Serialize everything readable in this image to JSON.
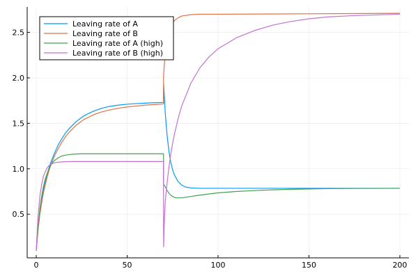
{
  "chart_data": {
    "type": "line",
    "title": "",
    "xlabel": "",
    "ylabel": "",
    "xlim": [
      -5,
      205
    ],
    "ylim": [
      0.02,
      2.78
    ],
    "xticks": [
      0,
      50,
      100,
      150,
      200
    ],
    "yticks": [
      0.5,
      1.0,
      1.5,
      2.0,
      2.5
    ],
    "xtick_labels": [
      "0",
      "50",
      "100",
      "150",
      "200"
    ],
    "ytick_labels": [
      "0.5",
      "1.0",
      "1.5",
      "2.0",
      "2.5"
    ],
    "grid": true,
    "legend_position": "top-left",
    "series": [
      {
        "name": "Leaving rate of A",
        "color": "#009af9",
        "points": [
          [
            0,
            0.1
          ],
          [
            1,
            0.35
          ],
          [
            2,
            0.52
          ],
          [
            3,
            0.66
          ],
          [
            4,
            0.77
          ],
          [
            5,
            0.86
          ],
          [
            6,
            0.94
          ],
          [
            7,
            1.01
          ],
          [
            8,
            1.07
          ],
          [
            9,
            1.12
          ],
          [
            10,
            1.17
          ],
          [
            12,
            1.26
          ],
          [
            14,
            1.33
          ],
          [
            16,
            1.39
          ],
          [
            18,
            1.44
          ],
          [
            20,
            1.48
          ],
          [
            22,
            1.52
          ],
          [
            24,
            1.55
          ],
          [
            26,
            1.58
          ],
          [
            28,
            1.6
          ],
          [
            30,
            1.62
          ],
          [
            33,
            1.645
          ],
          [
            36,
            1.665
          ],
          [
            40,
            1.685
          ],
          [
            45,
            1.7
          ],
          [
            50,
            1.71
          ],
          [
            55,
            1.717
          ],
          [
            60,
            1.722
          ],
          [
            65,
            1.727
          ],
          [
            70,
            1.73
          ],
          [
            70.05,
            1.93
          ],
          [
            70.5,
            1.78
          ],
          [
            71,
            1.6
          ],
          [
            72,
            1.36
          ],
          [
            73,
            1.19
          ],
          [
            74,
            1.07
          ],
          [
            75,
            0.99
          ],
          [
            76,
            0.93
          ],
          [
            78,
            0.86
          ],
          [
            80,
            0.82
          ],
          [
            82,
            0.8
          ],
          [
            85,
            0.79
          ],
          [
            90,
            0.785
          ],
          [
            100,
            0.785
          ],
          [
            150,
            0.785
          ],
          [
            200,
            0.785
          ]
        ]
      },
      {
        "name": "Leaving rate of B",
        "color": "#e26f46",
        "points": [
          [
            0,
            0.1
          ],
          [
            1,
            0.33
          ],
          [
            2,
            0.5
          ],
          [
            3,
            0.63
          ],
          [
            4,
            0.74
          ],
          [
            5,
            0.83
          ],
          [
            6,
            0.91
          ],
          [
            7,
            0.98
          ],
          [
            8,
            1.04
          ],
          [
            9,
            1.09
          ],
          [
            10,
            1.14
          ],
          [
            12,
            1.22
          ],
          [
            14,
            1.29
          ],
          [
            16,
            1.35
          ],
          [
            18,
            1.4
          ],
          [
            20,
            1.44
          ],
          [
            22,
            1.48
          ],
          [
            24,
            1.51
          ],
          [
            26,
            1.54
          ],
          [
            28,
            1.56
          ],
          [
            30,
            1.58
          ],
          [
            33,
            1.605
          ],
          [
            36,
            1.625
          ],
          [
            40,
            1.645
          ],
          [
            45,
            1.665
          ],
          [
            50,
            1.68
          ],
          [
            55,
            1.69
          ],
          [
            60,
            1.7
          ],
          [
            65,
            1.707
          ],
          [
            70,
            1.713
          ],
          [
            70.05,
            2.03
          ],
          [
            70.5,
            2.16
          ],
          [
            71,
            2.28
          ],
          [
            72,
            2.41
          ],
          [
            73,
            2.5
          ],
          [
            74,
            2.56
          ],
          [
            75,
            2.6
          ],
          [
            76,
            2.63
          ],
          [
            78,
            2.66
          ],
          [
            80,
            2.68
          ],
          [
            85,
            2.695
          ],
          [
            90,
            2.7
          ],
          [
            100,
            2.7
          ],
          [
            150,
            2.705
          ],
          [
            200,
            2.71
          ]
        ]
      },
      {
        "name": "Leaving rate of A (high)",
        "color": "#3da44d",
        "points": [
          [
            0,
            0.1
          ],
          [
            1,
            0.36
          ],
          [
            2,
            0.56
          ],
          [
            3,
            0.7
          ],
          [
            4,
            0.81
          ],
          [
            5,
            0.89
          ],
          [
            6,
            0.95
          ],
          [
            7,
            1.0
          ],
          [
            8,
            1.04
          ],
          [
            9,
            1.07
          ],
          [
            10,
            1.09
          ],
          [
            12,
            1.12
          ],
          [
            14,
            1.14
          ],
          [
            16,
            1.15
          ],
          [
            18,
            1.155
          ],
          [
            20,
            1.16
          ],
          [
            25,
            1.165
          ],
          [
            30,
            1.165
          ],
          [
            40,
            1.165
          ],
          [
            50,
            1.165
          ],
          [
            60,
            1.165
          ],
          [
            70,
            1.165
          ],
          [
            70.05,
            0.83
          ],
          [
            71,
            0.8
          ],
          [
            72,
            0.76
          ],
          [
            73,
            0.73
          ],
          [
            74,
            0.71
          ],
          [
            75,
            0.695
          ],
          [
            76,
            0.685
          ],
          [
            77,
            0.68
          ],
          [
            80,
            0.68
          ],
          [
            85,
            0.695
          ],
          [
            90,
            0.71
          ],
          [
            100,
            0.735
          ],
          [
            110,
            0.75
          ],
          [
            120,
            0.76
          ],
          [
            130,
            0.768
          ],
          [
            140,
            0.774
          ],
          [
            150,
            0.778
          ],
          [
            160,
            0.781
          ],
          [
            175,
            0.783
          ],
          [
            200,
            0.785
          ]
        ]
      },
      {
        "name": "Leaving rate of B (high)",
        "color": "#c271d2",
        "points": [
          [
            0,
            0.1
          ],
          [
            1,
            0.48
          ],
          [
            2,
            0.7
          ],
          [
            3,
            0.83
          ],
          [
            4,
            0.92
          ],
          [
            5,
            0.97
          ],
          [
            6,
            1.01
          ],
          [
            7,
            1.035
          ],
          [
            8,
            1.05
          ],
          [
            10,
            1.065
          ],
          [
            12,
            1.072
          ],
          [
            15,
            1.077
          ],
          [
            20,
            1.08
          ],
          [
            30,
            1.08
          ],
          [
            40,
            1.08
          ],
          [
            50,
            1.08
          ],
          [
            60,
            1.08
          ],
          [
            70,
            1.08
          ],
          [
            70.05,
            0.14
          ],
          [
            70.5,
            0.45
          ],
          [
            71,
            0.65
          ],
          [
            72,
            0.85
          ],
          [
            73,
            1.02
          ],
          [
            74,
            1.16
          ],
          [
            75,
            1.28
          ],
          [
            76,
            1.38
          ],
          [
            78,
            1.55
          ],
          [
            80,
            1.69
          ],
          [
            85,
            1.94
          ],
          [
            90,
            2.11
          ],
          [
            95,
            2.23
          ],
          [
            100,
            2.32
          ],
          [
            110,
            2.44
          ],
          [
            120,
            2.52
          ],
          [
            130,
            2.58
          ],
          [
            140,
            2.62
          ],
          [
            150,
            2.65
          ],
          [
            160,
            2.67
          ],
          [
            175,
            2.685
          ],
          [
            200,
            2.7
          ]
        ]
      }
    ]
  }
}
